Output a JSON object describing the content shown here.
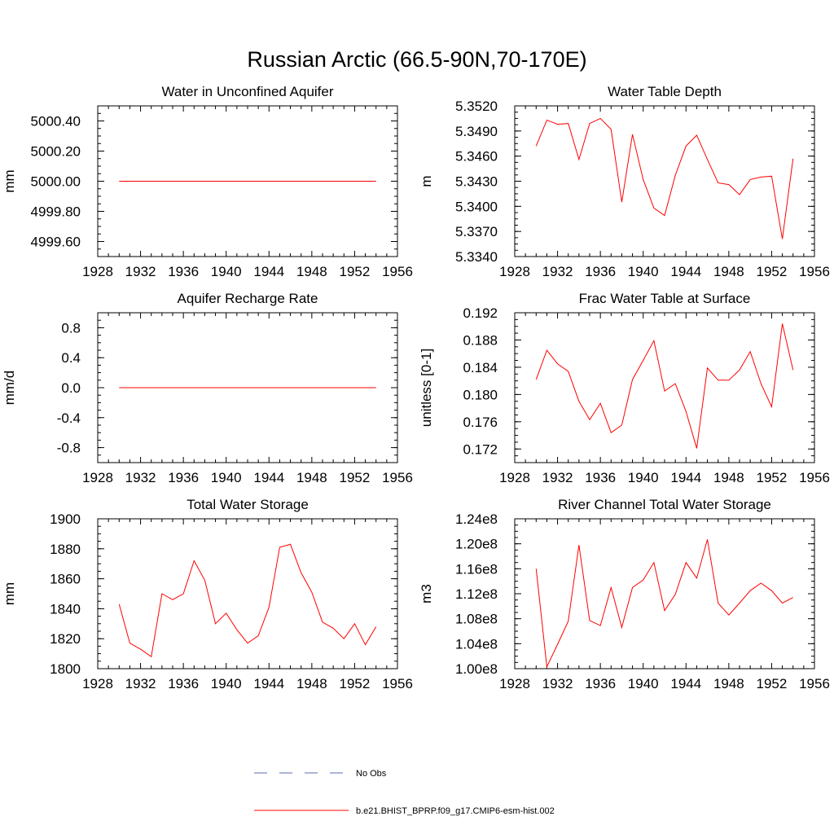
{
  "figure": {
    "title": "Russian Arctic (66.5-90N,70-170E)"
  },
  "legend": {
    "entries": [
      {
        "label": "No Obs",
        "style": "dashed",
        "color": "#5b6bb0"
      },
      {
        "label": "b.e21.BHIST_BPRP.f09_g17.CMIP6-esm-hist.002",
        "style": "solid",
        "color": "#ff0000"
      }
    ]
  },
  "chart_data": [
    {
      "type": "line",
      "title": "Water in Unconfined Aquifer",
      "ylabel": "mm",
      "xlim": [
        1928,
        1956
      ],
      "ylim": [
        4999.5,
        5000.5
      ],
      "xticks": [
        1928,
        1932,
        1936,
        1940,
        1944,
        1948,
        1952,
        1956
      ],
      "yticks": [
        4999.6,
        4999.8,
        5000.0,
        5000.2,
        5000.4
      ],
      "ytick_labels": [
        "4999.60",
        "4999.80",
        "5000.00",
        "5000.20",
        "5000.40"
      ],
      "x": [
        1930,
        1931,
        1932,
        1933,
        1934,
        1935,
        1936,
        1937,
        1938,
        1939,
        1940,
        1941,
        1942,
        1943,
        1944,
        1945,
        1946,
        1947,
        1948,
        1949,
        1950,
        1951,
        1952,
        1953,
        1954
      ],
      "series": [
        {
          "color": "#ff0000",
          "values": [
            5000,
            5000,
            5000,
            5000,
            5000,
            5000,
            5000,
            5000,
            5000,
            5000,
            5000,
            5000,
            5000,
            5000,
            5000,
            5000,
            5000,
            5000,
            5000,
            5000,
            5000,
            5000,
            5000,
            5000,
            5000
          ]
        }
      ]
    },
    {
      "type": "line",
      "title": "Water Table Depth",
      "ylabel": "m",
      "xlim": [
        1928,
        1956
      ],
      "ylim": [
        5.334,
        5.352
      ],
      "xticks": [
        1928,
        1932,
        1936,
        1940,
        1944,
        1948,
        1952,
        1956
      ],
      "yticks": [
        5.334,
        5.337,
        5.34,
        5.343,
        5.346,
        5.349,
        5.352
      ],
      "ytick_labels": [
        "5.3340",
        "5.3370",
        "5.3400",
        "5.3430",
        "5.3460",
        "5.3490",
        "5.3520"
      ],
      "x": [
        1930,
        1931,
        1932,
        1933,
        1934,
        1935,
        1936,
        1937,
        1938,
        1939,
        1940,
        1941,
        1942,
        1943,
        1944,
        1945,
        1946,
        1947,
        1948,
        1949,
        1950,
        1951,
        1952,
        1953,
        1954
      ],
      "series": [
        {
          "color": "#ff0000",
          "values": [
            5.3472,
            5.3503,
            5.3498,
            5.3499,
            5.3456,
            5.3499,
            5.3505,
            5.3492,
            5.3405,
            5.3486,
            5.3432,
            5.3398,
            5.3389,
            5.3437,
            5.3472,
            5.3485,
            5.3456,
            5.3428,
            5.3426,
            5.3414,
            5.3432,
            5.3435,
            5.3436,
            5.3361,
            5.3457
          ]
        }
      ]
    },
    {
      "type": "line",
      "title": "Aquifer Recharge Rate",
      "ylabel": "mm/d",
      "xlim": [
        1928,
        1956
      ],
      "ylim": [
        -1.0,
        1.0
      ],
      "xticks": [
        1928,
        1932,
        1936,
        1940,
        1944,
        1948,
        1952,
        1956
      ],
      "yticks": [
        -0.8,
        -0.4,
        0.0,
        0.4,
        0.8
      ],
      "ytick_labels": [
        "-0.8",
        "-0.4",
        "0.0",
        "0.4",
        "0.8"
      ],
      "x": [
        1930,
        1931,
        1932,
        1933,
        1934,
        1935,
        1936,
        1937,
        1938,
        1939,
        1940,
        1941,
        1942,
        1943,
        1944,
        1945,
        1946,
        1947,
        1948,
        1949,
        1950,
        1951,
        1952,
        1953,
        1954
      ],
      "series": [
        {
          "color": "#ff0000",
          "values": [
            0,
            0,
            0,
            0,
            0,
            0,
            0,
            0,
            0,
            0,
            0,
            0,
            0,
            0,
            0,
            0,
            0,
            0,
            0,
            0,
            0,
            0,
            0,
            0,
            0
          ]
        }
      ]
    },
    {
      "type": "line",
      "title": "Frac Water Table at Surface",
      "ylabel": "unitless [0-1]",
      "xlim": [
        1928,
        1956
      ],
      "ylim": [
        0.17,
        0.192
      ],
      "xticks": [
        1928,
        1932,
        1936,
        1940,
        1944,
        1948,
        1952,
        1956
      ],
      "yticks": [
        0.172,
        0.176,
        0.18,
        0.184,
        0.188,
        0.192
      ],
      "ytick_labels": [
        "0.172",
        "0.176",
        "0.180",
        "0.184",
        "0.188",
        "0.192"
      ],
      "x": [
        1930,
        1931,
        1932,
        1933,
        1934,
        1935,
        1936,
        1937,
        1938,
        1939,
        1940,
        1941,
        1942,
        1943,
        1944,
        1945,
        1946,
        1947,
        1948,
        1949,
        1950,
        1951,
        1952,
        1953,
        1954
      ],
      "series": [
        {
          "color": "#ff0000",
          "values": [
            0.1822,
            0.1865,
            0.1845,
            0.1834,
            0.179,
            0.1763,
            0.1787,
            0.1744,
            0.1755,
            0.1822,
            0.185,
            0.1879,
            0.1805,
            0.1816,
            0.1775,
            0.1721,
            0.1839,
            0.1821,
            0.1821,
            0.1836,
            0.1863,
            0.1816,
            0.1782,
            0.1904,
            0.1836
          ]
        }
      ]
    },
    {
      "type": "line",
      "title": "Total Water Storage",
      "ylabel": "mm",
      "xlim": [
        1928,
        1956
      ],
      "ylim": [
        1800,
        1900
      ],
      "xticks": [
        1928,
        1932,
        1936,
        1940,
        1944,
        1948,
        1952,
        1956
      ],
      "yticks": [
        1800,
        1820,
        1840,
        1860,
        1880,
        1900
      ],
      "ytick_labels": [
        "1800",
        "1820",
        "1840",
        "1860",
        "1880",
        "1900"
      ],
      "x": [
        1930,
        1931,
        1932,
        1933,
        1934,
        1935,
        1936,
        1937,
        1938,
        1939,
        1940,
        1941,
        1942,
        1943,
        1944,
        1945,
        1946,
        1947,
        1948,
        1949,
        1950,
        1951,
        1952,
        1953,
        1954
      ],
      "series": [
        {
          "color": "#ff0000",
          "values": [
            1843,
            1817,
            1813,
            1808,
            1850,
            1846,
            1850,
            1872,
            1859,
            1830,
            1837,
            1826,
            1817,
            1822,
            1841,
            1881,
            1883,
            1864,
            1851,
            1831,
            1827,
            1820,
            1830,
            1816,
            1828
          ]
        }
      ]
    },
    {
      "type": "line",
      "title": "River Channel Total Water Storage",
      "ylabel": "m3",
      "xlim": [
        1928,
        1956
      ],
      "ylim": [
        100000000,
        124000000
      ],
      "xticks": [
        1928,
        1932,
        1936,
        1940,
        1944,
        1948,
        1952,
        1956
      ],
      "yticks": [
        100000000,
        104000000,
        108000000,
        112000000,
        116000000,
        120000000,
        124000000
      ],
      "ytick_labels": [
        "1.00e8",
        "1.04e8",
        "1.08e8",
        "1.12e8",
        "1.16e8",
        "1.20e8",
        "1.24e8"
      ],
      "x": [
        1930,
        1931,
        1932,
        1933,
        1934,
        1935,
        1936,
        1937,
        1938,
        1939,
        1940,
        1941,
        1942,
        1943,
        1944,
        1945,
        1946,
        1947,
        1948,
        1949,
        1950,
        1951,
        1952,
        1953,
        1954
      ],
      "series": [
        {
          "color": "#ff0000",
          "values": [
            116000000,
            100300000,
            103900000,
            107600000,
            119800000,
            107700000,
            106900000,
            113000000,
            106600000,
            113000000,
            114200000,
            117000000,
            109300000,
            111900000,
            117000000,
            114500000,
            120700000,
            110500000,
            108600000,
            110500000,
            112500000,
            113700000,
            112500000,
            110500000,
            111400000
          ]
        }
      ]
    }
  ]
}
